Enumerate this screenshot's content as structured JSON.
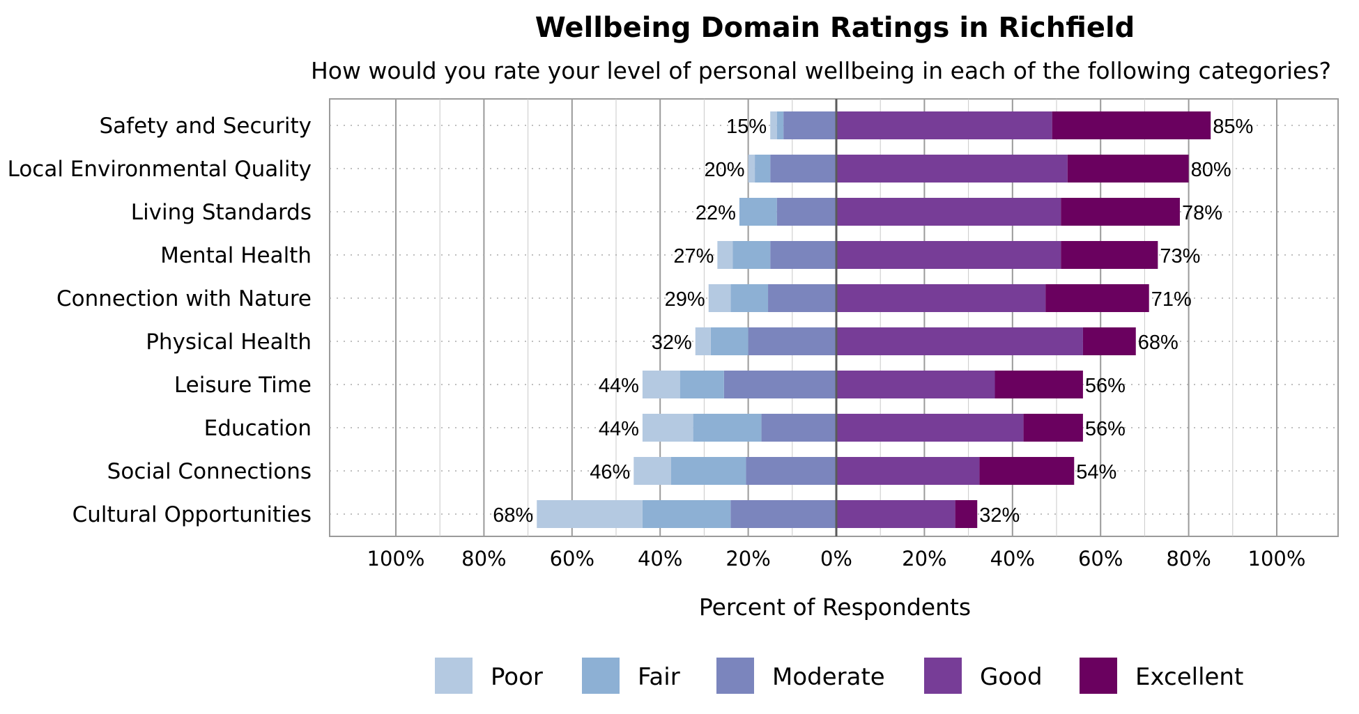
{
  "chart_data": {
    "type": "bar",
    "orientation": "horizontal",
    "stacked": "diverging",
    "title": "Wellbeing Domain Ratings in Richfield",
    "subtitle": "How would you rate your level of personal wellbeing in each of the following categories?",
    "xlabel": "Percent of Respondents",
    "ylabel": "",
    "xlim": [
      -100,
      100
    ],
    "x_ticks": [
      "100%",
      "80%",
      "60%",
      "40%",
      "20%",
      "0%",
      "20%",
      "40%",
      "60%",
      "80%",
      "100%"
    ],
    "grid": true,
    "legend_position": "bottom",
    "categories": [
      "Safety and Security",
      "Local Environmental Quality",
      "Living Standards",
      "Mental Health",
      "Connection with Nature",
      "Physical Health",
      "Leisure Time",
      "Education",
      "Social Connections",
      "Cultural Opportunities"
    ],
    "negative_series": [
      "Moderate",
      "Fair",
      "Poor"
    ],
    "positive_series": [
      "Good",
      "Excellent"
    ],
    "series": [
      {
        "name": "Poor",
        "color": "#b4c9e1",
        "values": [
          1.5,
          1.5,
          0,
          3.5,
          5,
          3.5,
          8.5,
          11.5,
          8.5,
          24
        ]
      },
      {
        "name": "Fair",
        "color": "#8db0d4",
        "values": [
          1.5,
          3.5,
          8.5,
          8.5,
          8.5,
          8.5,
          10,
          15.5,
          17,
          20
        ]
      },
      {
        "name": "Moderate",
        "color": "#7b85bd",
        "values": [
          12,
          15,
          13.5,
          15,
          15.5,
          20,
          25.5,
          17,
          20.5,
          24
        ]
      },
      {
        "name": "Good",
        "color": "#773d97",
        "values": [
          49,
          52.5,
          51,
          51,
          47.5,
          56,
          36,
          42.5,
          32.5,
          27
        ]
      },
      {
        "name": "Excellent",
        "color": "#6a015f",
        "values": [
          36,
          27.5,
          27,
          22,
          23.5,
          12,
          20,
          13.5,
          21.5,
          5
        ]
      }
    ],
    "negative_totals": [
      "15%",
      "20%",
      "22%",
      "27%",
      "29%",
      "32%",
      "44%",
      "44%",
      "46%",
      "68%"
    ],
    "positive_totals": [
      "85%",
      "80%",
      "78%",
      "73%",
      "71%",
      "68%",
      "56%",
      "56%",
      "54%",
      "32%"
    ]
  }
}
